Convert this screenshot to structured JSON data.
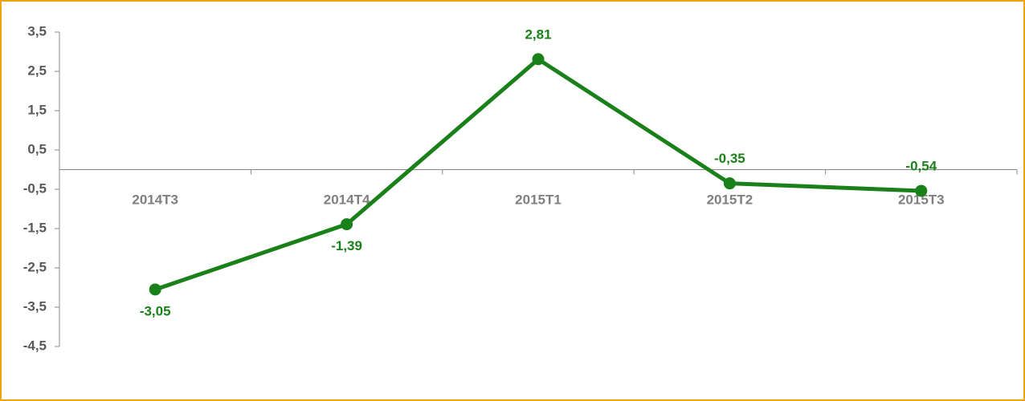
{
  "chart_data": {
    "type": "line",
    "categories": [
      "2014T3",
      "2014T4",
      "2015T1",
      "2015T2",
      "2015T3"
    ],
    "series": [
      {
        "color": "#1a801a",
        "values": [
          -3.05,
          -1.39,
          2.81,
          -0.35,
          -0.54
        ],
        "value_labels": [
          "-3,05",
          "-1,39",
          "2,81",
          "-0,35",
          "-0,54"
        ]
      }
    ],
    "ylim": [
      -4.5,
      3.5
    ],
    "yticks": [
      {
        "value": 3.5,
        "label": "3,5"
      },
      {
        "value": 2.5,
        "label": "2,5"
      },
      {
        "value": 1.5,
        "label": "1,5"
      },
      {
        "value": 0.5,
        "label": "0,5"
      },
      {
        "value": -0.5,
        "label": "-0,5"
      },
      {
        "value": -1.5,
        "label": "-1,5"
      },
      {
        "value": -2.5,
        "label": "-2,5"
      },
      {
        "value": -3.5,
        "label": "-3,5"
      },
      {
        "value": -4.5,
        "label": "-4,5"
      }
    ],
    "grid": false
  }
}
